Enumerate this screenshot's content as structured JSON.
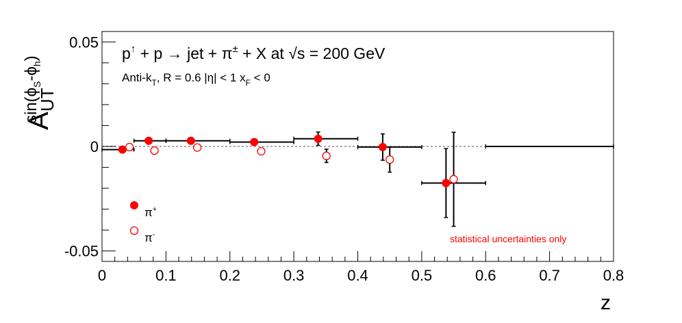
{
  "chart_data": {
    "type": "scatter",
    "title": "p↑ + p → jet + π± + X at √s = 200 GeV",
    "subtitle": "Anti-kT, R = 0.6   |η| < 1   xF < 0",
    "xlabel": "z",
    "ylabel": "A_UT^sin(ϕS-ϕh)",
    "xlim": [
      0,
      0.8
    ],
    "ylim": [
      -0.055,
      0.055
    ],
    "x_ticks": [
      "0",
      "0.1",
      "0.2",
      "0.3",
      "0.4",
      "0.5",
      "0.6",
      "0.7",
      "0.8"
    ],
    "y_ticks": [
      "0.05",
      "0",
      "-0.05"
    ],
    "zero_line": true,
    "legend_position": "bottom-left",
    "annotation": "statistical uncertainties only",
    "accent_color": "#ff0000",
    "series": [
      {
        "name": "π+",
        "marker": "filled-circle",
        "points": [
          {
            "x": 0.032,
            "y": -0.0015,
            "xerr": [
              0.032,
              0.018
            ],
            "yerr": 0.0004
          },
          {
            "x": 0.073,
            "y": 0.0027,
            "xerr": [
              0.023,
              0.027
            ],
            "yerr": 0.0004
          },
          {
            "x": 0.139,
            "y": 0.0027,
            "xerr": [
              0.039,
              0.061
            ],
            "yerr": 0.0005
          },
          {
            "x": 0.238,
            "y": 0.0021,
            "xerr": [
              0.038,
              0.062
            ],
            "yerr": 0.0008
          },
          {
            "x": 0.338,
            "y": 0.0037,
            "xerr": [
              0.038,
              0.062
            ],
            "yerr": 0.0032
          },
          {
            "x": 0.439,
            "y": -0.0003,
            "xerr": [
              0.039,
              0.061
            ],
            "yerr": 0.0063
          },
          {
            "x": 0.538,
            "y": -0.0175,
            "xerr": [
              0.038,
              0.062
            ],
            "yerr": 0.0165
          }
        ]
      },
      {
        "name": "π-",
        "marker": "open-circle",
        "points": [
          {
            "x": 0.043,
            "y": -0.0003,
            "yerr": 0.0004
          },
          {
            "x": 0.082,
            "y": -0.002,
            "yerr": 0.0005
          },
          {
            "x": 0.149,
            "y": -0.0005,
            "yerr": 0.0005
          },
          {
            "x": 0.249,
            "y": -0.0023,
            "yerr": 0.0008
          },
          {
            "x": 0.351,
            "y": -0.0045,
            "yerr": 0.0032
          },
          {
            "x": 0.45,
            "y": -0.0063,
            "yerr": 0.006
          },
          {
            "x": 0.55,
            "y": -0.0157,
            "yerr": 0.0225
          }
        ]
      },
      {
        "name": "",
        "marker": "none",
        "points": [
          {
            "x": 0.7,
            "y": 0.0,
            "xerr": [
              0.1,
              0.1
            ],
            "yerr": 0.0
          }
        ]
      }
    ]
  }
}
